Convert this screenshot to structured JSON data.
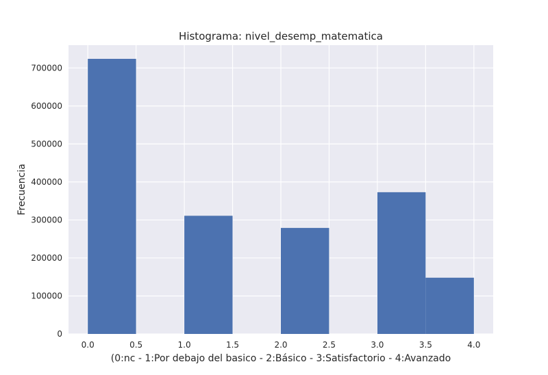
{
  "chart_data": {
    "type": "bar",
    "title": "Histograma: nivel_desemp_matematica",
    "xlabel": "(0:nc - 1:Por debajo del basico - 2:Básico - 3:Satisfactorio - 4:Avanzado",
    "ylabel": "Frecuencia",
    "xlim": [
      -0.2,
      4.2
    ],
    "ylim": [
      0,
      760000
    ],
    "x_ticks": [
      0.0,
      0.5,
      1.0,
      1.5,
      2.0,
      2.5,
      3.0,
      3.5,
      4.0
    ],
    "x_tick_labels": [
      "0.0",
      "0.5",
      "1.0",
      "1.5",
      "2.0",
      "2.5",
      "3.0",
      "3.5",
      "4.0"
    ],
    "y_ticks": [
      0,
      100000,
      200000,
      300000,
      400000,
      500000,
      600000,
      700000
    ],
    "y_tick_labels": [
      "0",
      "100000",
      "200000",
      "300000",
      "400000",
      "500000",
      "600000",
      "700000"
    ],
    "bins": [
      {
        "start": 0.0,
        "end": 0.5,
        "value": 724000
      },
      {
        "start": 0.5,
        "end": 1.0,
        "value": 0
      },
      {
        "start": 1.0,
        "end": 1.5,
        "value": 311000
      },
      {
        "start": 1.5,
        "end": 2.0,
        "value": 0
      },
      {
        "start": 2.0,
        "end": 2.5,
        "value": 279000
      },
      {
        "start": 2.5,
        "end": 3.0,
        "value": 0
      },
      {
        "start": 3.0,
        "end": 3.5,
        "value": 373000
      },
      {
        "start": 3.5,
        "end": 4.0,
        "value": 148000
      }
    ],
    "grid": true,
    "colors": {
      "bar": "#4c72b0",
      "plot_bg": "#eaeaf2",
      "grid": "#ffffff"
    }
  }
}
